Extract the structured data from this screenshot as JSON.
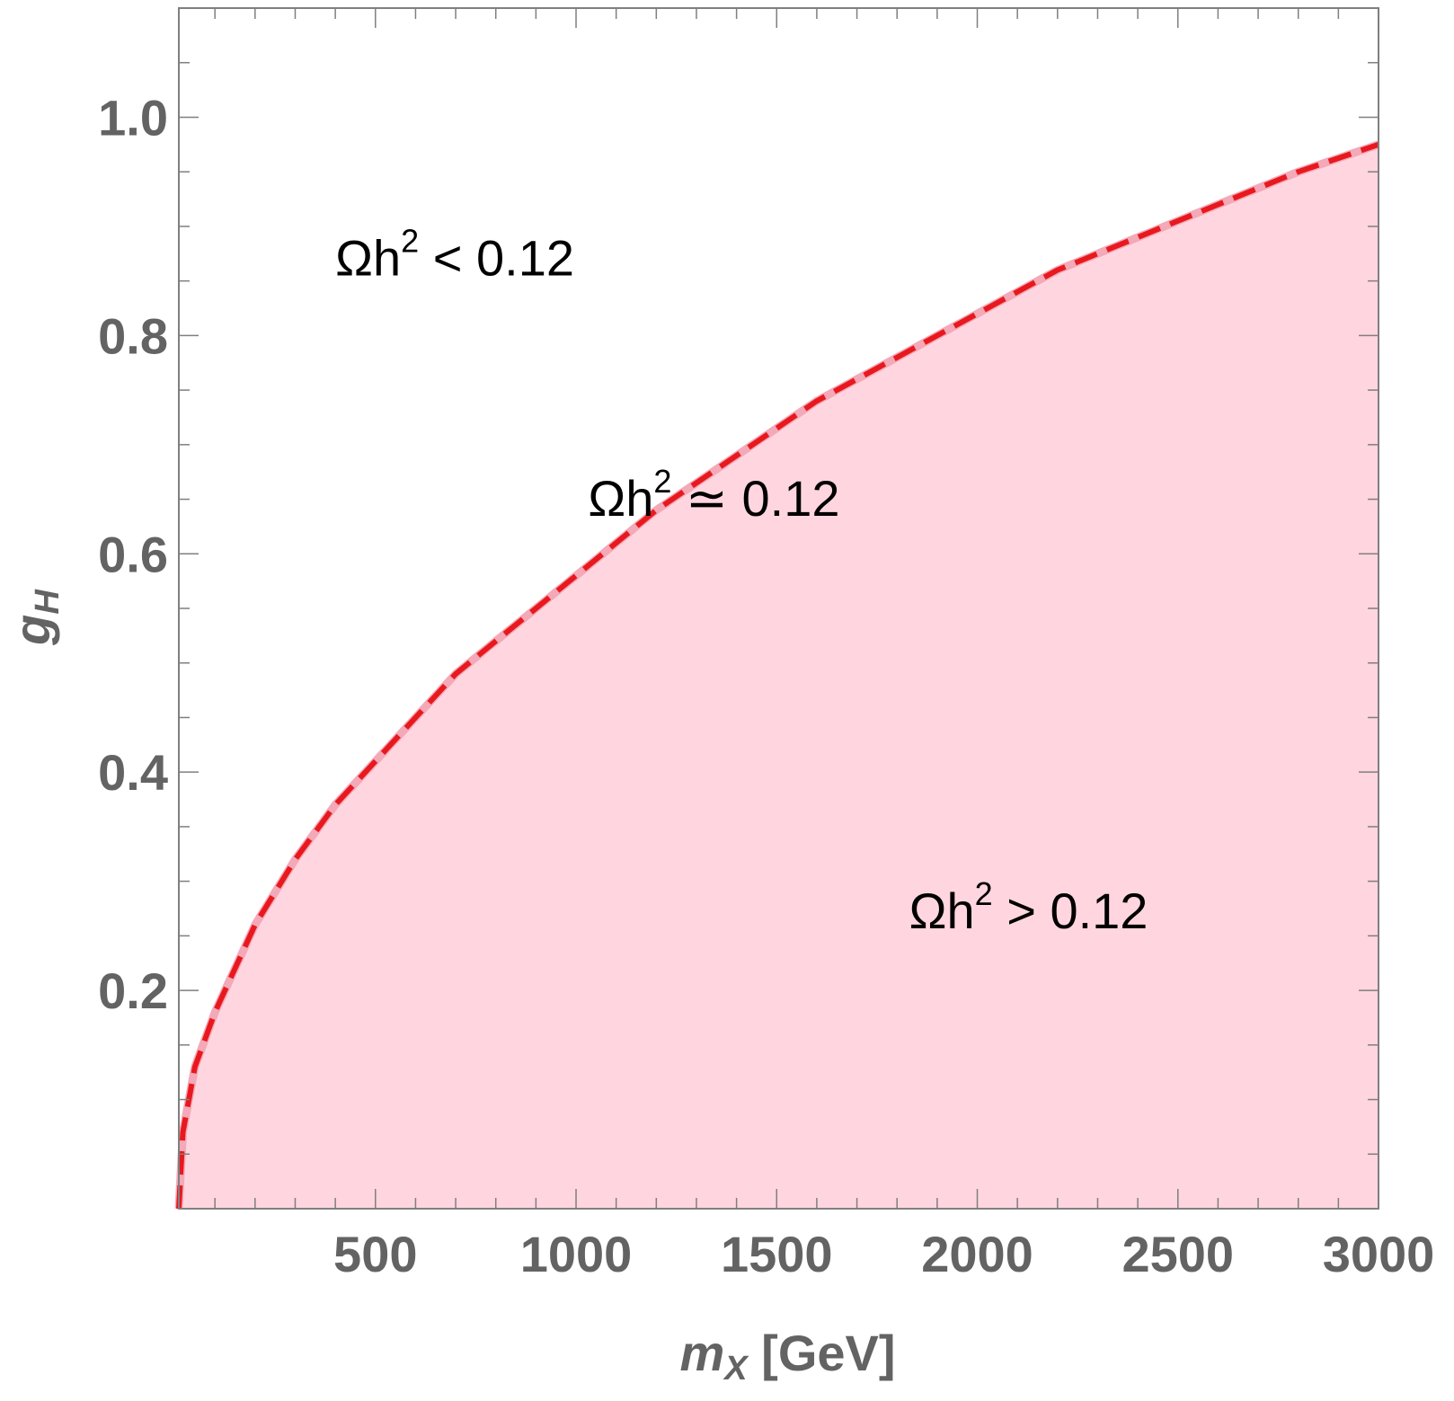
{
  "chart_data": {
    "type": "area",
    "xlabel": {
      "main": "m",
      "sub": "X",
      "unit": " [GeV]"
    },
    "ylabel": {
      "main": "g",
      "sub": "H"
    },
    "xlim": [
      10,
      3000
    ],
    "ylim": [
      0,
      1.1
    ],
    "x_ticks": [
      500,
      1000,
      1500,
      2000,
      2500,
      3000
    ],
    "x_tick_labels": [
      "500",
      "1000",
      "1500",
      "2000",
      "2500",
      "3000"
    ],
    "y_ticks": [
      0.2,
      0.4,
      0.6,
      0.8,
      1.0
    ],
    "y_tick_labels": [
      "0.2",
      "0.4",
      "0.6",
      "0.8",
      "1.0"
    ],
    "grid": false,
    "series": [
      {
        "style": "dashed",
        "color": "#e8191e",
        "fill_below": "#ffd6df",
        "x": [
          10,
          20,
          50,
          100,
          200,
          300,
          400,
          500,
          600,
          700,
          800,
          900,
          1000,
          1200,
          1400,
          1600,
          1800,
          2000,
          2200,
          2400,
          2600,
          2800,
          3000
        ],
        "y": [
          0.0,
          0.07,
          0.13,
          0.18,
          0.26,
          0.32,
          0.37,
          0.41,
          0.45,
          0.49,
          0.52,
          0.55,
          0.58,
          0.64,
          0.69,
          0.74,
          0.78,
          0.82,
          0.86,
          0.89,
          0.92,
          0.95,
          0.975
        ]
      }
    ],
    "annotations": [
      {
        "x": 400,
        "y": 0.855,
        "pre": "Ωh",
        "sup": "2",
        "post": " < 0.12"
      },
      {
        "x": 1030,
        "y": 0.635,
        "pre": "Ωh",
        "sup": "2",
        "post": " ≃ 0.12"
      },
      {
        "x": 1830,
        "y": 0.257,
        "pre": "Ωh",
        "sup": "2",
        "post": " > 0.12"
      }
    ],
    "colors": {
      "frame": "#7f7f7f",
      "tick_text": "#636363",
      "curve": "#e8191e",
      "fill": "#ffd6df"
    }
  }
}
